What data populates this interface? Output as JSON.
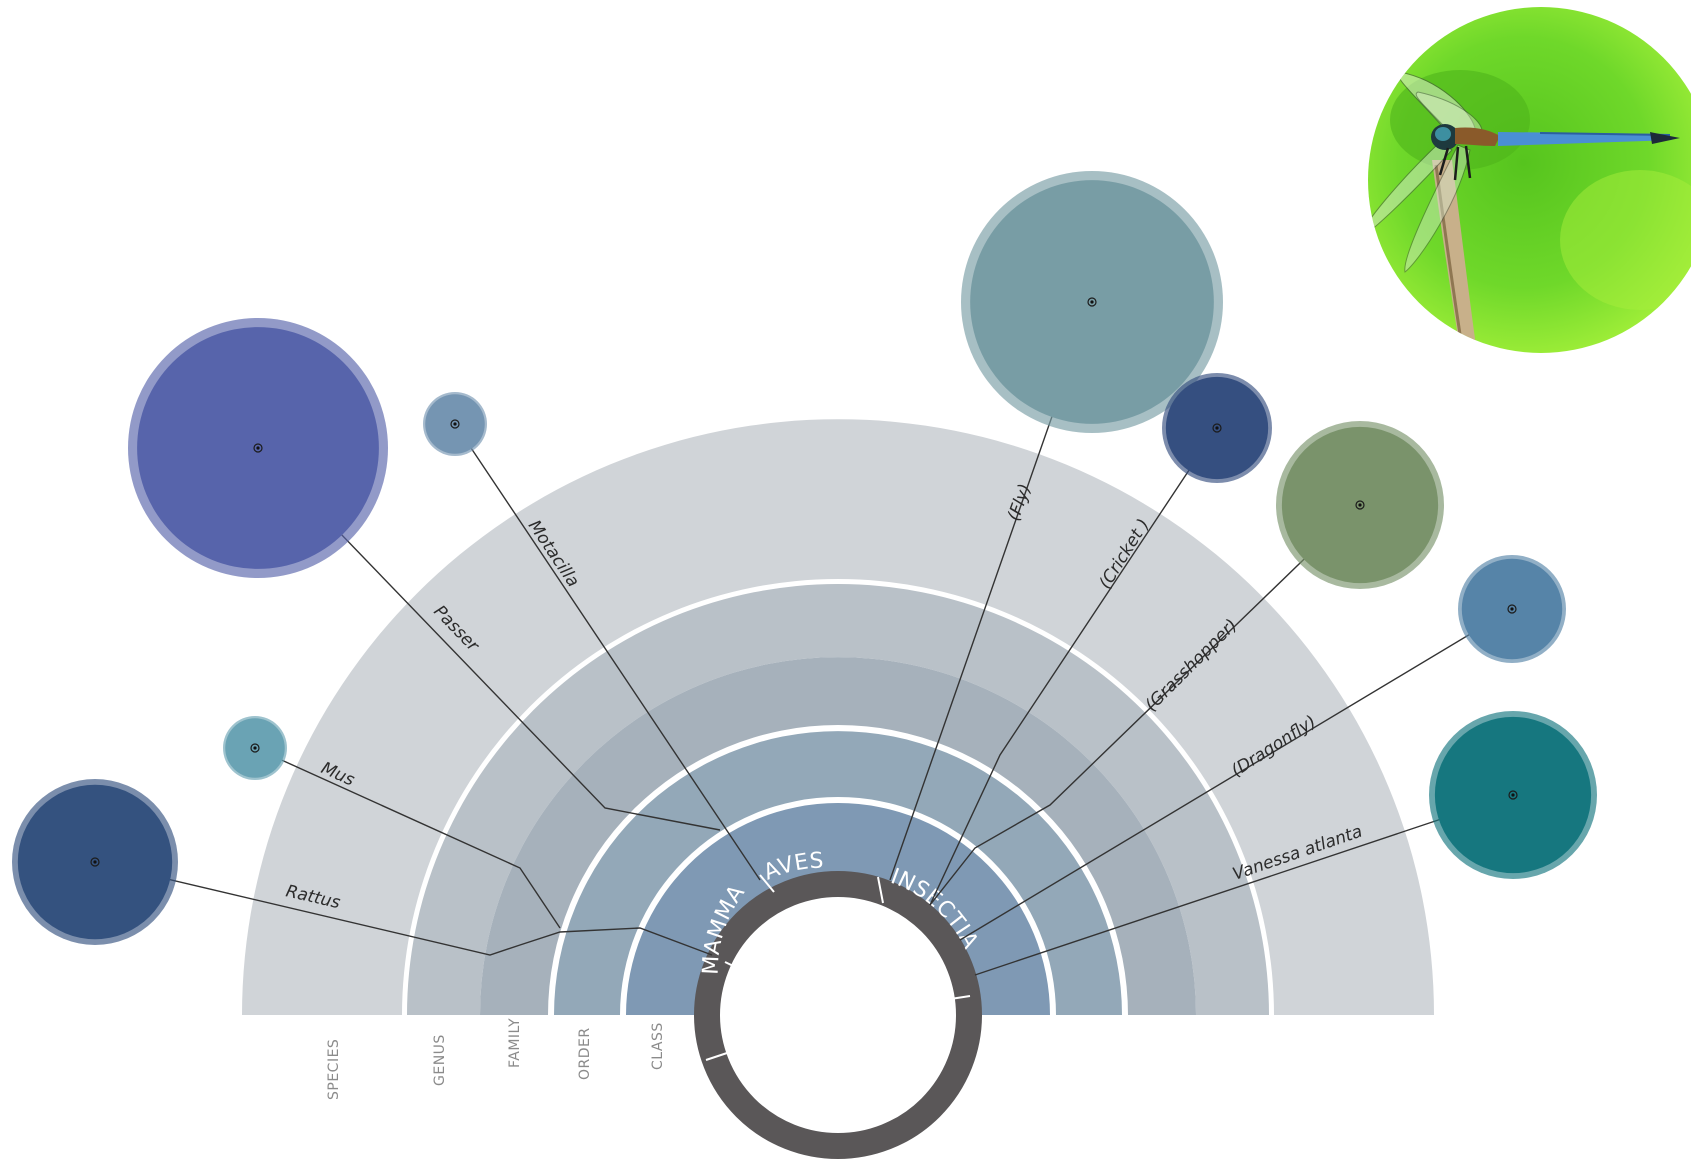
{
  "ranks": [
    {
      "key": "species",
      "label": "SPECIES"
    },
    {
      "key": "genus",
      "label": "GENUS"
    },
    {
      "key": "family",
      "label": "FAMILY"
    },
    {
      "key": "order",
      "label": "ORDER"
    },
    {
      "key": "class",
      "label": "CLASS"
    }
  ],
  "classes": [
    {
      "key": "mammalia",
      "label": "MAMMALIA"
    },
    {
      "key": "aves",
      "label": "AVES"
    },
    {
      "key": "insectia",
      "label": "INSECTIA"
    }
  ],
  "taxa": [
    {
      "key": "rattus",
      "label": "Rattus",
      "fill": "#34527f"
    },
    {
      "key": "mus",
      "label": "Mus",
      "fill": "#6aa3b4"
    },
    {
      "key": "passer",
      "label": "Passer",
      "fill": "#5764ab"
    },
    {
      "key": "motacilla",
      "label": "Motacilla",
      "fill": "#7595b2"
    },
    {
      "key": "fly",
      "label": "(Fly)",
      "fill": "#789da5"
    },
    {
      "key": "cricket",
      "label": "(Cricket )",
      "fill": "#354f80"
    },
    {
      "key": "grasshopper",
      "label": "(Grasshopper)",
      "fill": "#7a936b"
    },
    {
      "key": "dragonfly",
      "label": "(Dragonfly)",
      "fill": "#5684a8"
    },
    {
      "key": "vanessa",
      "label": "Vanessa atlanta",
      "fill": "#16777f"
    }
  ],
  "colors": {
    "ring_species": "#d0d4d8",
    "ring_genus": "#b9c1c8",
    "ring_family": "#a6b1bb",
    "ring_order": "#93a8b8",
    "ring_class": "#7f99b4",
    "center_ring": "#5a5758"
  },
  "photo": {
    "subject": "dragonfly-photo",
    "bg": "#6ed62a"
  }
}
